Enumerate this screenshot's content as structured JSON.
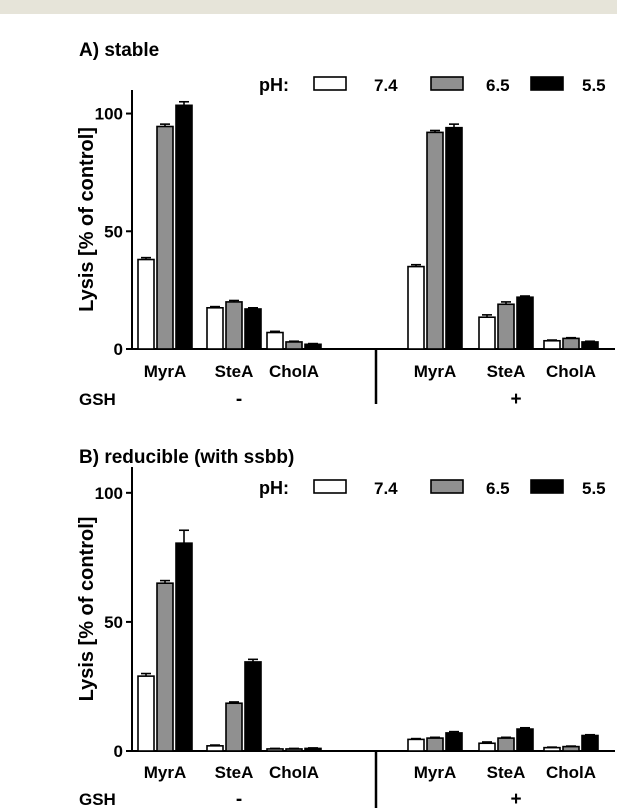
{
  "chart_data": [
    {
      "type": "bar",
      "title": "A) stable",
      "ylabel": "Lysis [% of control]",
      "ylim": [
        0,
        110
      ],
      "yticks": [
        "0",
        "50",
        "100"
      ],
      "grid": false,
      "legend": {
        "title": "pH:",
        "placement": "top-right"
      },
      "categories": [
        "MyrA",
        "SteA",
        "CholA",
        "MyrA",
        "SteA",
        "CholA"
      ],
      "group_label": "GSH",
      "groups": [
        {
          "label": "-",
          "categories": [
            "MyrA",
            "SteA",
            "CholA"
          ]
        },
        {
          "label": "+",
          "categories": [
            "MyrA",
            "SteA",
            "CholA"
          ]
        }
      ],
      "series": [
        {
          "name": "7.4",
          "color": "#ffffff",
          "values": [
            38,
            17.5,
            7,
            35,
            13.5,
            3.5
          ],
          "errors": [
            0.8,
            0.5,
            0.5,
            0.8,
            1,
            0.3
          ]
        },
        {
          "name": "6.5",
          "color": "#909090",
          "values": [
            94.5,
            20,
            3,
            92,
            19,
            4.5
          ],
          "errors": [
            1,
            0.6,
            0.3,
            0.8,
            1,
            0.3
          ]
        },
        {
          "name": "5.5",
          "color": "#000000",
          "values": [
            103.5,
            17,
            2,
            94,
            22,
            3
          ],
          "errors": [
            1.5,
            0.5,
            0.3,
            1.5,
            0.5,
            0.3
          ]
        }
      ]
    },
    {
      "type": "bar",
      "title": "B) reducible (with ssbb)",
      "ylabel": "Lysis [% of control]",
      "ylim": [
        0,
        110
      ],
      "yticks": [
        "0",
        "50",
        "100"
      ],
      "grid": false,
      "legend": {
        "title": "pH:",
        "placement": "top-right"
      },
      "categories": [
        "MyrA",
        "SteA",
        "CholA",
        "MyrA",
        "SteA",
        "CholA"
      ],
      "group_label": "GSH",
      "groups": [
        {
          "label": "-",
          "categories": [
            "MyrA",
            "SteA",
            "CholA"
          ]
        },
        {
          "label": "+",
          "categories": [
            "MyrA",
            "SteA",
            "CholA"
          ]
        }
      ],
      "series": [
        {
          "name": "7.4",
          "color": "#ffffff",
          "values": [
            29,
            2,
            0.8,
            4.5,
            3,
            1.3
          ],
          "errors": [
            1,
            0.3,
            0.2,
            0.3,
            0.5,
            0.2
          ]
        },
        {
          "name": "6.5",
          "color": "#909090",
          "values": [
            65,
            18.5,
            0.8,
            5,
            5,
            1.7
          ],
          "errors": [
            1,
            0.5,
            0.2,
            0.3,
            0.3,
            0.2
          ]
        },
        {
          "name": "5.5",
          "color": "#000000",
          "values": [
            80.5,
            34.5,
            1,
            7,
            8.5,
            6
          ],
          "errors": [
            5,
            1,
            0.2,
            0.5,
            0.5,
            0.3
          ]
        }
      ]
    }
  ]
}
